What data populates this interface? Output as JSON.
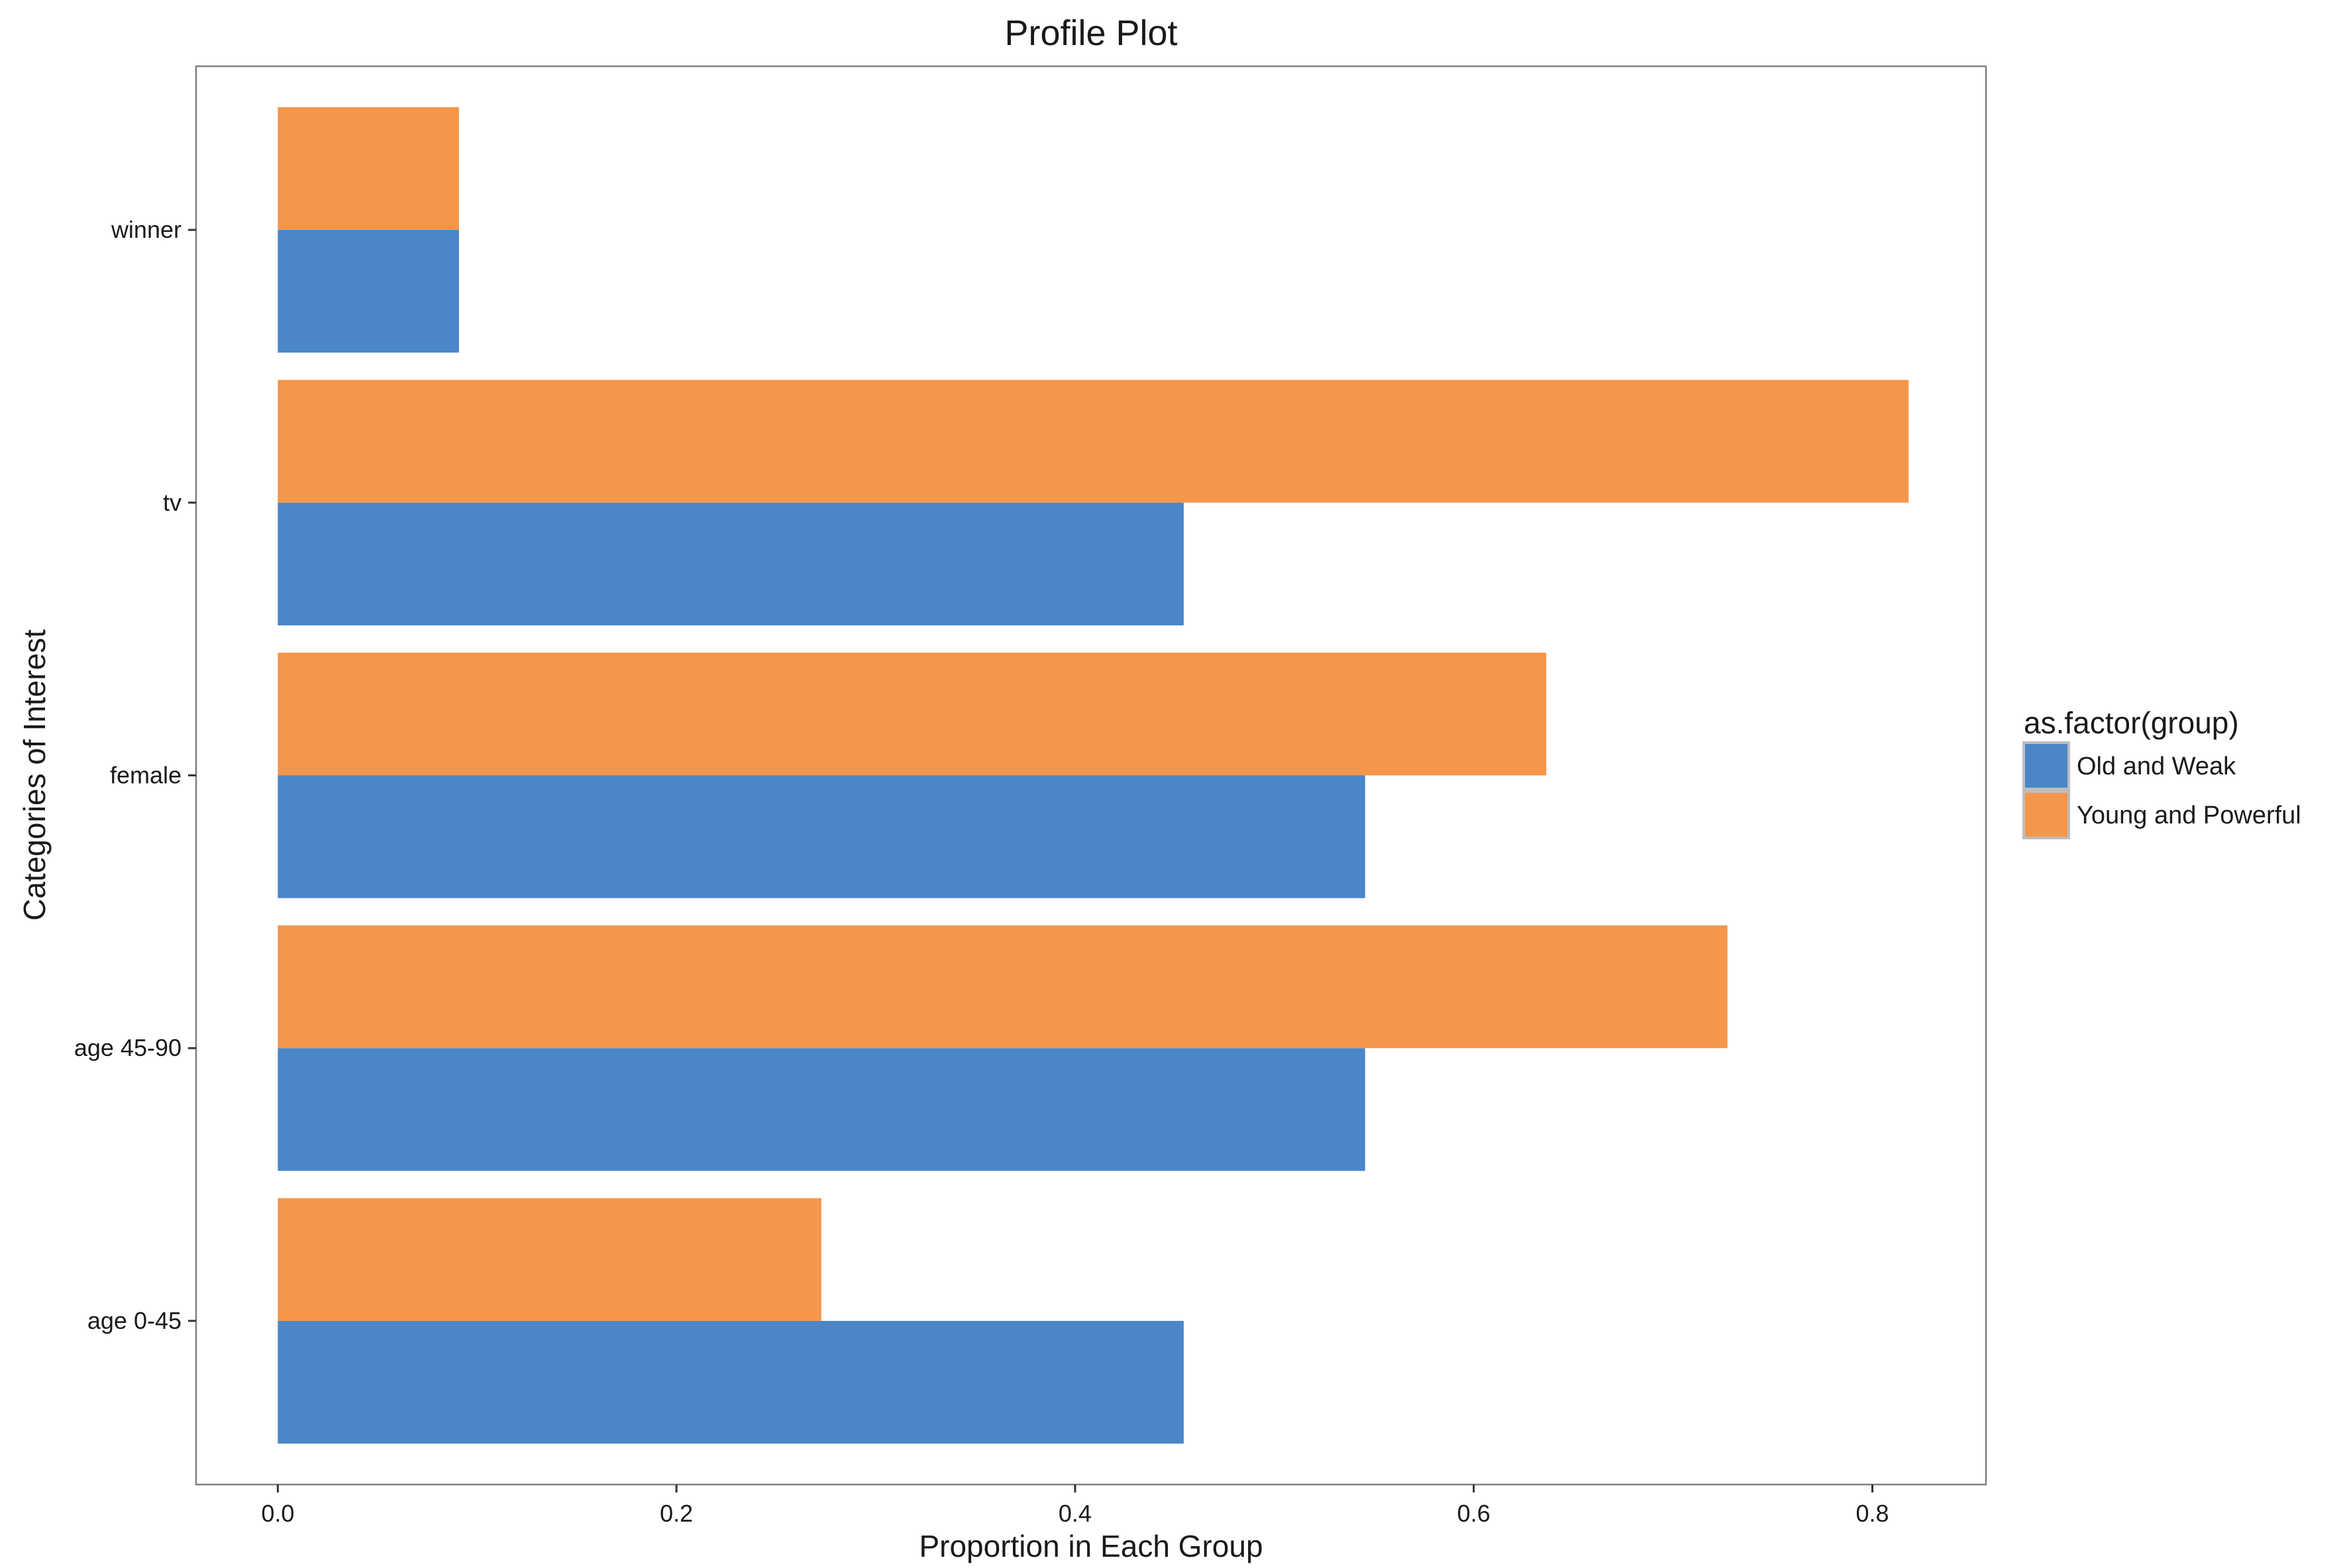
{
  "chart_data": {
    "type": "bar",
    "orientation": "horizontal",
    "title": "Profile Plot",
    "xlabel": "Proportion in Each Group",
    "ylabel": "Categories of Interest",
    "categories": [
      "age 0-45",
      "age 45-90",
      "female",
      "tv",
      "winner"
    ],
    "series": [
      {
        "name": "Old and Weak",
        "color": "#4A86C8",
        "values": [
          0.4545,
          0.5455,
          0.5455,
          0.4545,
          0.0909
        ]
      },
      {
        "name": "Young and Powerful",
        "color": "#F5964A",
        "values": [
          0.2727,
          0.7273,
          0.6364,
          0.8182,
          0.0909
        ]
      }
    ],
    "xlim": [
      -0.041,
      0.857
    ],
    "xticks": [
      0.0,
      0.2,
      0.4,
      0.6,
      0.8
    ],
    "xtick_labels": [
      "0.0",
      "0.2",
      "0.4",
      "0.6",
      "0.8"
    ],
    "legend": {
      "title": "as.factor(group)",
      "position": "right"
    },
    "grid": false
  }
}
